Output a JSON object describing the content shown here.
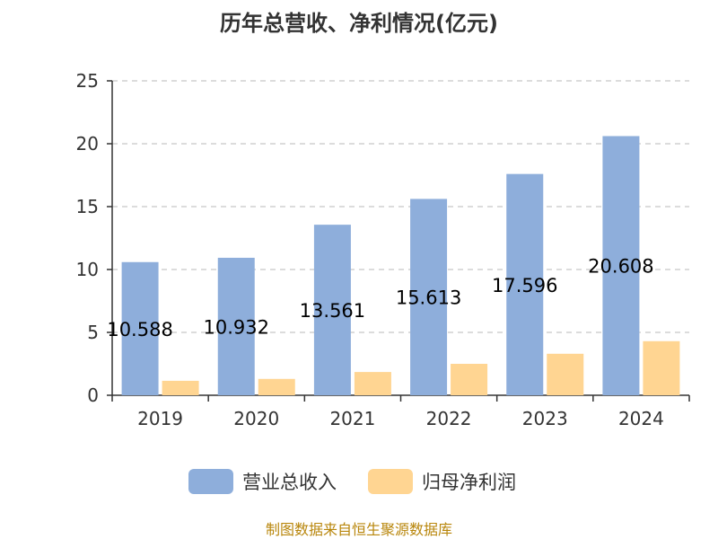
{
  "chart_data": {
    "type": "bar",
    "title": "历年总营收、净利情况(亿元)",
    "xlabel": "",
    "ylabel": "",
    "categories": [
      "2019",
      "2020",
      "2021",
      "2022",
      "2023",
      "2024"
    ],
    "ylim": [
      0,
      25
    ],
    "yticks": [
      "0",
      "5",
      "10",
      "15",
      "20",
      "25"
    ],
    "grid": true,
    "legend_position": "bottom",
    "series": [
      {
        "name": "营业总收入",
        "color": "#8eaedb",
        "values": [
          10.588,
          10.932,
          13.561,
          15.613,
          17.596,
          20.608
        ],
        "labels": [
          "10.588",
          "10.932",
          "13.561",
          "15.613",
          "17.596",
          "20.608"
        ]
      },
      {
        "name": "归母净利润",
        "color": "#ffd592",
        "values": [
          1.15,
          1.3,
          1.85,
          2.5,
          3.3,
          4.3
        ]
      }
    ]
  },
  "footer": "制图数据来自恒生聚源数据库"
}
